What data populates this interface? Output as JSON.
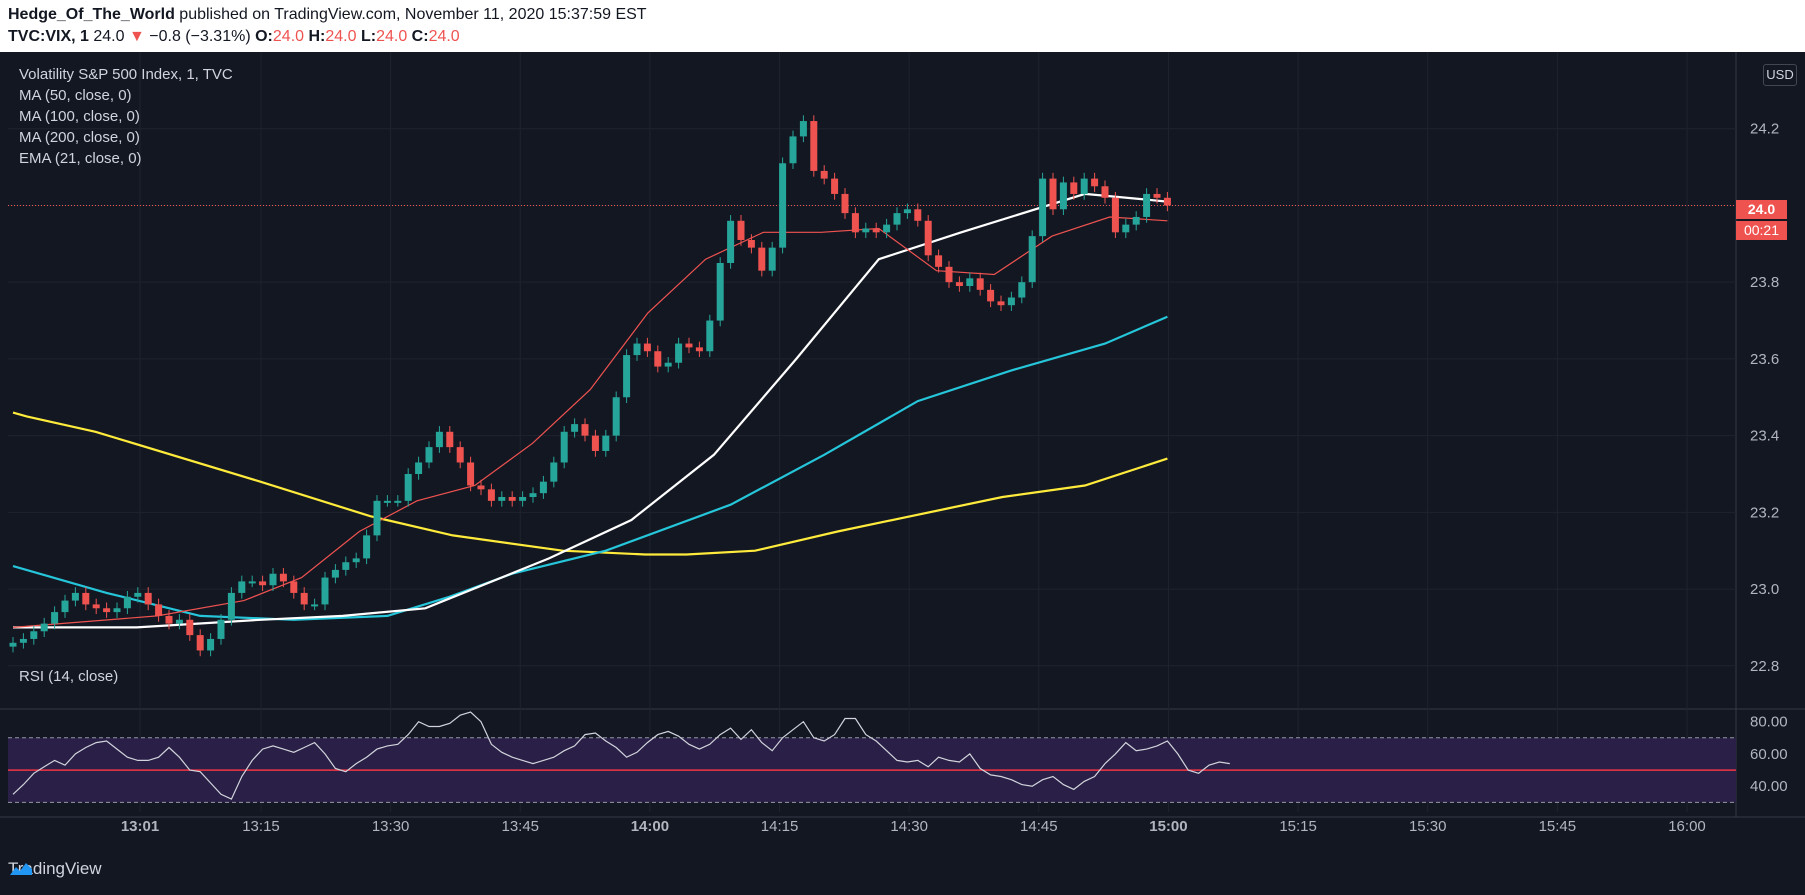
{
  "header": {
    "author": "Hedge_Of_The_World",
    "published": "published on TradingView.com, November 11, 2020 15:37:59 EST",
    "symbol": "TVC:VIX, 1",
    "last": "24.0",
    "change": "−0.8 (−3.31%)",
    "o_label": "O:",
    "o_val": "24.0",
    "h_label": "H:",
    "h_val": "24.0",
    "l_label": "L:",
    "l_val": "24.0",
    "c_label": "C:",
    "c_val": "24.0"
  },
  "legend": {
    "series": "Volatility S&P 500 Index, 1, TVC",
    "ma50": "MA (50, close, 0)",
    "ma100": "MA (100, close, 0)",
    "ma200": "MA (200, close, 0)",
    "ema21": "EMA (21, close, 0)"
  },
  "rsi_label": "RSI (14, close)",
  "currency": "USD",
  "price_tag": "24.0",
  "countdown": "00:21",
  "footer_brand": "TradingView",
  "colors": {
    "up": "#26a69a",
    "down": "#ef5350",
    "ma50": "#ffffff",
    "ma100": "#26c6da",
    "ma200": "#ffeb3b",
    "ema21": "#ef5350",
    "rsi": "#d1d4dc",
    "rsi_band": "#2a1f46"
  },
  "chart_data": {
    "type": "candlestick",
    "title": "Volatility S&P 500 Index, 1, TVC",
    "y_ticks": [
      24.2,
      24.0,
      23.8,
      23.6,
      23.4,
      23.2,
      23.0,
      22.8
    ],
    "ylim": [
      22.69,
      24.4
    ],
    "x_ticks": [
      {
        "label": "13:01",
        "min": 61,
        "bold": true
      },
      {
        "label": "13:15",
        "min": 75
      },
      {
        "label": "13:30",
        "min": 90
      },
      {
        "label": "13:45",
        "min": 105
      },
      {
        "label": "14:00",
        "min": 120,
        "bold": true
      },
      {
        "label": "14:15",
        "min": 135
      },
      {
        "label": "14:30",
        "min": 150
      },
      {
        "label": "14:45",
        "min": 165
      },
      {
        "label": "15:00",
        "min": 180,
        "bold": true
      },
      {
        "label": "15:15",
        "min": 195
      },
      {
        "label": "15:30",
        "min": 210
      },
      {
        "label": "15:45",
        "min": 225
      },
      {
        "label": "16:00",
        "min": 240
      }
    ],
    "close_series": [
      22.86,
      22.87,
      22.89,
      22.91,
      22.94,
      22.97,
      22.99,
      22.96,
      22.95,
      22.94,
      22.95,
      22.98,
      22.99,
      22.96,
      22.93,
      22.91,
      22.92,
      22.88,
      22.84,
      22.87,
      22.92,
      22.99,
      23.02,
      23.02,
      23.01,
      23.04,
      23.02,
      22.99,
      22.96,
      22.96,
      23.03,
      23.05,
      23.07,
      23.08,
      23.14,
      23.23,
      23.23,
      23.23,
      23.3,
      23.33,
      23.37,
      23.41,
      23.37,
      23.33,
      23.27,
      23.26,
      23.23,
      23.24,
      23.23,
      23.24,
      23.25,
      23.28,
      23.33,
      23.41,
      23.43,
      23.4,
      23.36,
      23.4,
      23.5,
      23.61,
      23.64,
      23.62,
      23.58,
      23.59,
      23.64,
      23.63,
      23.62,
      23.7,
      23.85,
      23.96,
      23.91,
      23.89,
      23.83,
      23.89,
      24.11,
      24.18,
      24.22,
      24.09,
      24.07,
      24.03,
      23.98,
      23.93,
      23.94,
      23.93,
      23.95,
      23.98,
      23.99,
      23.96,
      23.87,
      23.84,
      23.8,
      23.79,
      23.81,
      23.78,
      23.75,
      23.74,
      23.76,
      23.8,
      23.92,
      24.07,
      23.99,
      24.06,
      24.03,
      24.07,
      24.05,
      24.02,
      23.93,
      23.95,
      23.97,
      24.03,
      24.02,
      24.0
    ],
    "ma50": [
      [
        0,
        22.9
      ],
      [
        30,
        22.9
      ],
      [
        60,
        22.92
      ],
      [
        80,
        22.93
      ],
      [
        100,
        22.95
      ],
      [
        130,
        23.08
      ],
      [
        150,
        23.18
      ],
      [
        170,
        23.35
      ],
      [
        190,
        23.6
      ],
      [
        210,
        23.86
      ],
      [
        230,
        23.93
      ],
      [
        260,
        24.03
      ],
      [
        280,
        24.01
      ]
    ],
    "ma100": [
      [
        0,
        23.06
      ],
      [
        30,
        22.99
      ],
      [
        60,
        22.93
      ],
      [
        90,
        22.92
      ],
      [
        120,
        22.93
      ],
      [
        140,
        22.98
      ],
      [
        160,
        23.04
      ],
      [
        190,
        23.1
      ],
      [
        230,
        23.22
      ],
      [
        260,
        23.35
      ],
      [
        290,
        23.49
      ],
      [
        320,
        23.57
      ],
      [
        350,
        23.64
      ],
      [
        370,
        23.71
      ]
    ],
    "ma200": [
      [
        0,
        23.46
      ],
      [
        5,
        23.45
      ],
      [
        30,
        23.41
      ],
      [
        90,
        23.28
      ],
      [
        130,
        23.19
      ],
      [
        160,
        23.14
      ],
      [
        200,
        23.1
      ],
      [
        230,
        23.09
      ],
      [
        245,
        23.09
      ],
      [
        270,
        23.1
      ],
      [
        300,
        23.15
      ],
      [
        340,
        23.21
      ],
      [
        360,
        23.24
      ],
      [
        390,
        23.27
      ],
      [
        420,
        23.34
      ]
    ],
    "ema21": [
      [
        0,
        22.9
      ],
      [
        50,
        22.93
      ],
      [
        80,
        22.97
      ],
      [
        100,
        23.03
      ],
      [
        120,
        23.15
      ],
      [
        140,
        23.23
      ],
      [
        160,
        23.27
      ],
      [
        180,
        23.38
      ],
      [
        200,
        23.52
      ],
      [
        220,
        23.72
      ],
      [
        240,
        23.86
      ],
      [
        260,
        23.93
      ],
      [
        280,
        23.93
      ],
      [
        300,
        23.94
      ],
      [
        320,
        23.83
      ],
      [
        340,
        23.82
      ],
      [
        360,
        23.92
      ],
      [
        380,
        23.97
      ],
      [
        400,
        23.96
      ]
    ],
    "rsi": {
      "label": "RSI (14, close)",
      "levels": [
        80.0,
        60.0,
        40.0
      ],
      "upper": 70,
      "mid": 50,
      "lower": 30,
      "ylim": [
        24,
        86
      ],
      "values": [
        35,
        41,
        48,
        52,
        56,
        53,
        60,
        64,
        67,
        68,
        63,
        58,
        56,
        56,
        58,
        64,
        58,
        50,
        49,
        42,
        35,
        32,
        46,
        56,
        63,
        65,
        63,
        61,
        64,
        67,
        60,
        51,
        49,
        54,
        58,
        63,
        65,
        66,
        72,
        80,
        77,
        77,
        79,
        84,
        86,
        80,
        66,
        61,
        58,
        56,
        54,
        56,
        58,
        62,
        65,
        72,
        73,
        68,
        64,
        58,
        61,
        67,
        72,
        74,
        71,
        66,
        63,
        66,
        72,
        76,
        69,
        75,
        67,
        62,
        70,
        75,
        80,
        70,
        68,
        72,
        82,
        82,
        72,
        68,
        62,
        56,
        55,
        56,
        52,
        58,
        56,
        55,
        60,
        51,
        47,
        46,
        44,
        41,
        40,
        44,
        46,
        41,
        38,
        43,
        46,
        54,
        60,
        67,
        62,
        63,
        65,
        68,
        60,
        50,
        48,
        53,
        55,
        54
      ]
    }
  }
}
